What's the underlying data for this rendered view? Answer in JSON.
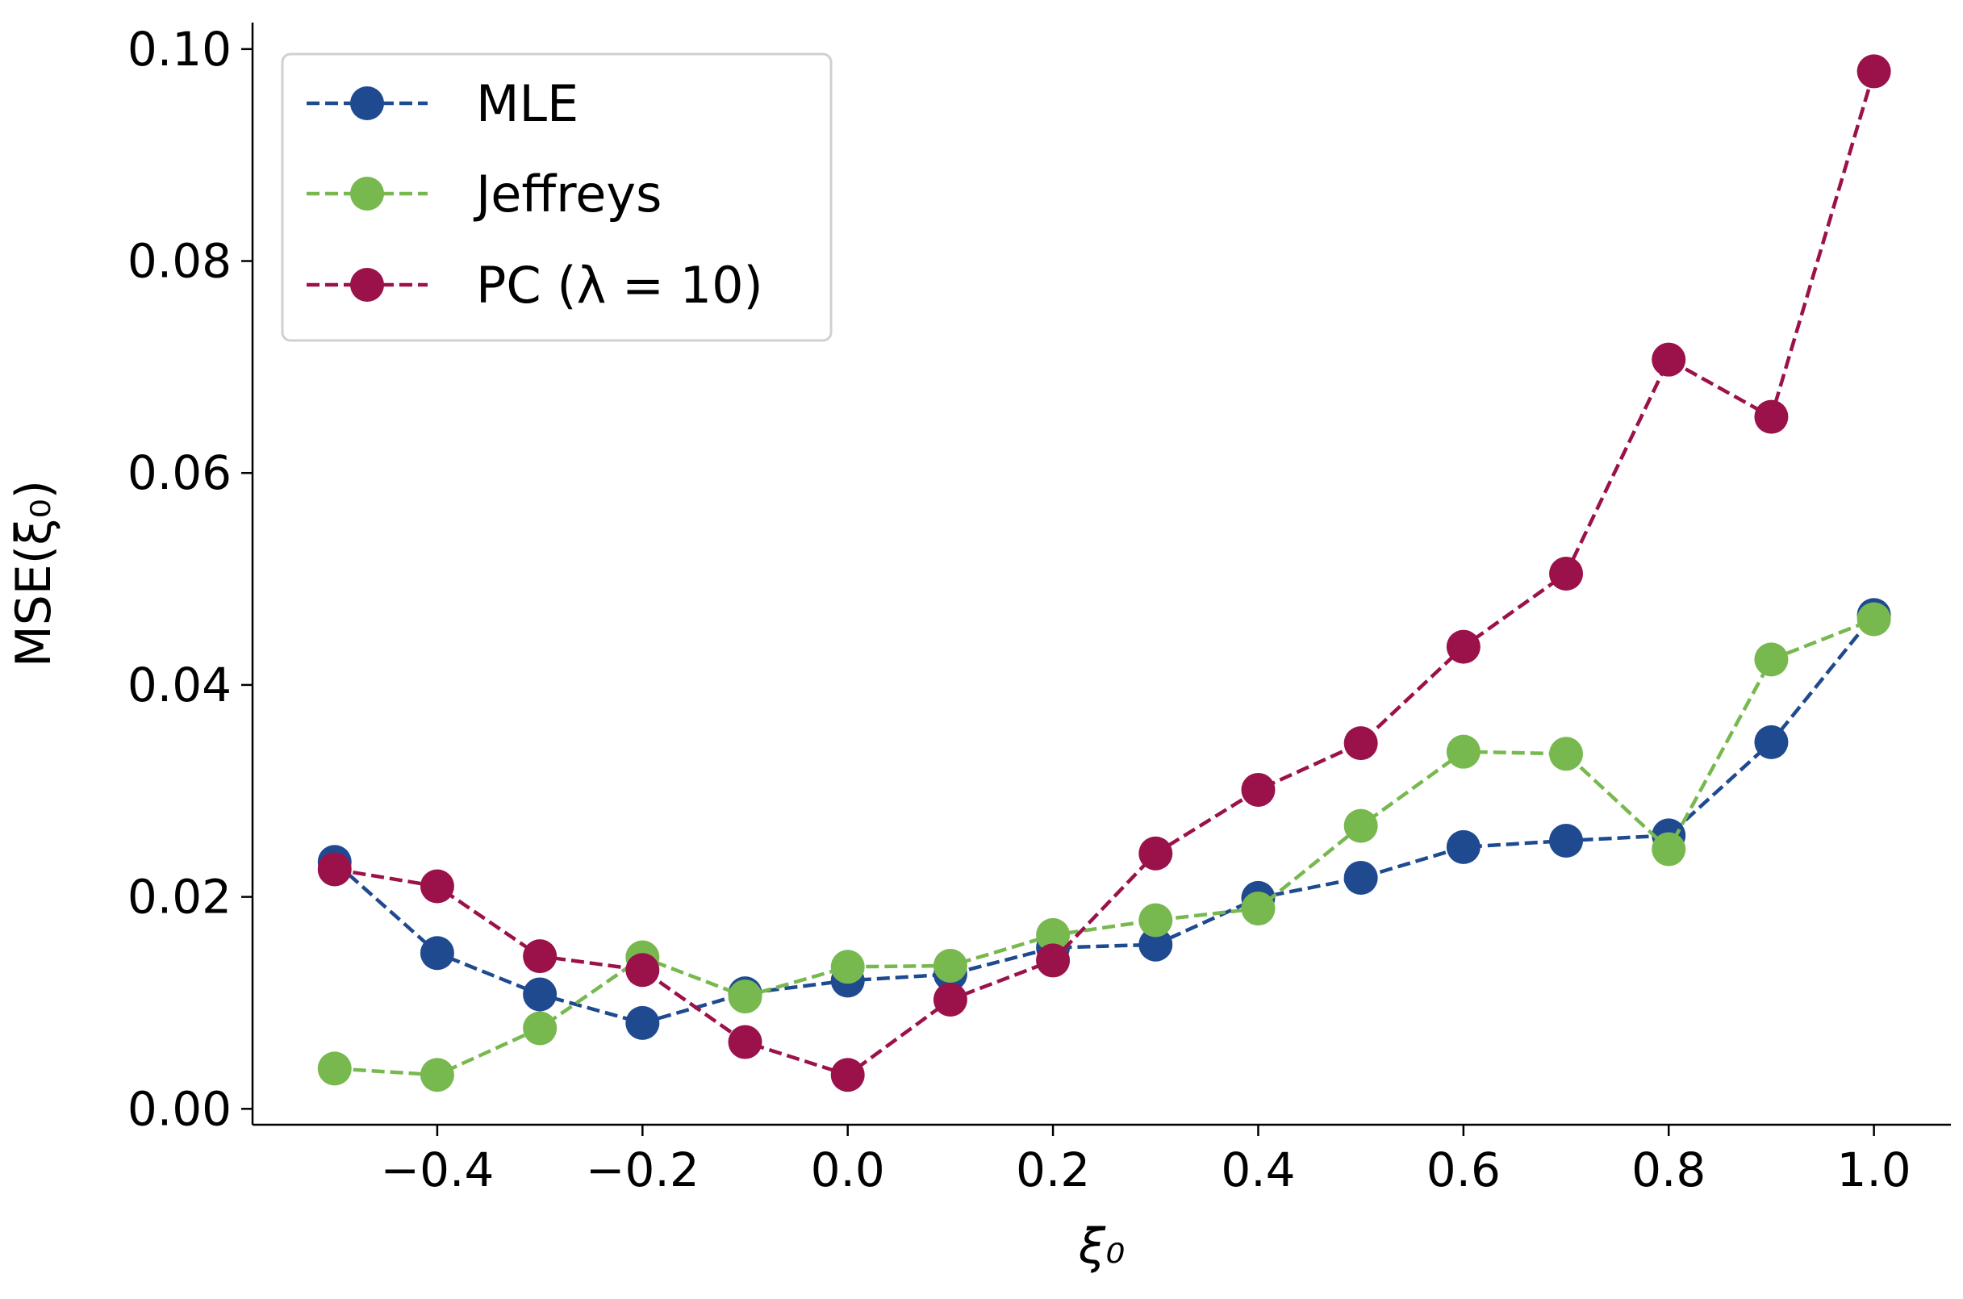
{
  "chart_data": {
    "type": "line",
    "x": [
      -0.5,
      -0.4,
      -0.3,
      -0.2,
      -0.1,
      0.0,
      0.1,
      0.2,
      0.3,
      0.4,
      0.5,
      0.6,
      0.7,
      0.8,
      0.9,
      1.0
    ],
    "series": [
      {
        "name": "MLE",
        "color": "#1f4a8f",
        "values": [
          0.0233,
          0.0147,
          0.0108,
          0.0081,
          0.0109,
          0.0121,
          0.0127,
          0.0152,
          0.0155,
          0.0199,
          0.0218,
          0.0247,
          0.0253,
          0.0258,
          0.0346,
          0.0466
        ]
      },
      {
        "name": "Jeffreys",
        "color": "#77b84f",
        "values": [
          0.0038,
          0.0032,
          0.0076,
          0.0143,
          0.0106,
          0.0134,
          0.0135,
          0.0164,
          0.0178,
          0.0189,
          0.0267,
          0.0337,
          0.0335,
          0.0245,
          0.0424,
          0.0462
        ]
      },
      {
        "name": "PC (λ = 10)",
        "color": "#9b1149",
        "values": [
          0.0226,
          0.021,
          0.0144,
          0.0131,
          0.0063,
          0.0032,
          0.0103,
          0.014,
          0.0241,
          0.0301,
          0.0345,
          0.0436,
          0.0505,
          0.0707,
          0.0653,
          0.0979
        ]
      }
    ],
    "xlabel": "ξ₀",
    "ylabel": "MSE(ξ₀)",
    "xlim": [
      -0.58,
      1.075
    ],
    "ylim": [
      -0.0015,
      0.1025
    ],
    "xticks": [
      -0.4,
      -0.2,
      0.0,
      0.2,
      0.4,
      0.6,
      0.8,
      1.0
    ],
    "xtick_labels": [
      "−0.4",
      "−0.2",
      "0.0",
      "0.2",
      "0.4",
      "0.6",
      "0.8",
      "1.0"
    ],
    "yticks": [
      0.0,
      0.02,
      0.04,
      0.06,
      0.08,
      0.1
    ],
    "ytick_labels": [
      "0.00",
      "0.02",
      "0.04",
      "0.06",
      "0.08",
      "0.10"
    ],
    "legend_position": "top-left",
    "grid": false,
    "line_style": "dashed",
    "marker": "circle"
  }
}
